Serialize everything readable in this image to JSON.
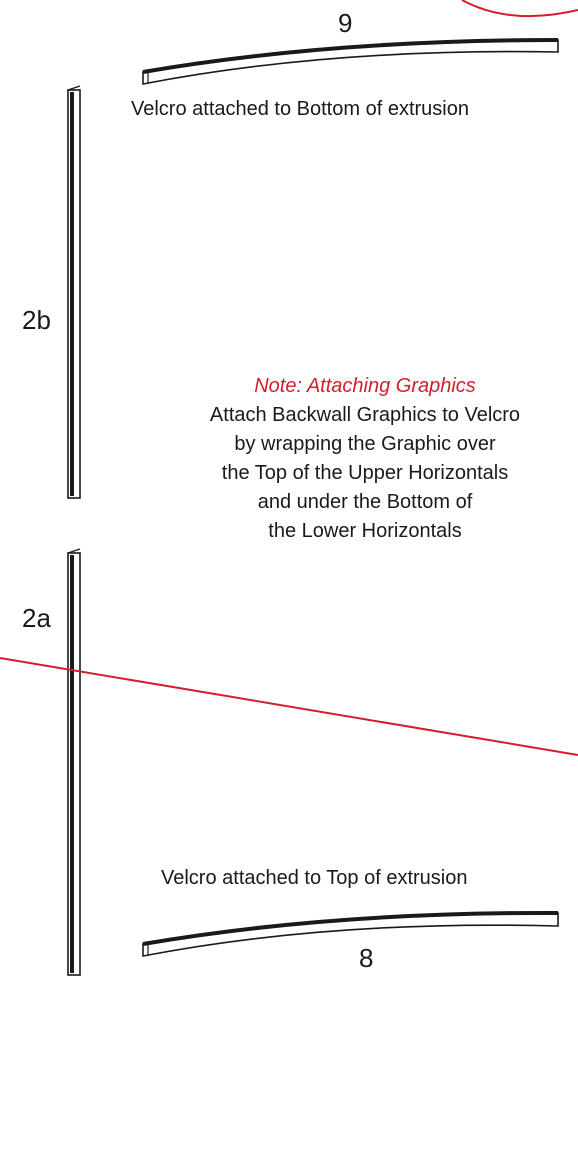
{
  "labels": {
    "top_extrusion_number": "9",
    "bottom_extrusion_number": "8",
    "upright_upper_number": "2b",
    "upright_lower_number": "2a",
    "top_velcro_note": "Velcro attached to Bottom of extrusion",
    "bottom_velcro_note": "Velcro attached to Top of extrusion"
  },
  "note": {
    "title": "Note: Attaching Graphics",
    "lines": [
      "Attach Backwall Graphics to Velcro",
      "by wrapping the Graphic over",
      "the Top of the Upper Horizontals",
      "and under the Bottom of",
      "the Lower Horizontals"
    ]
  },
  "colors": {
    "accent_red": "#d21f2b",
    "line_black": "#1a1a1a"
  }
}
